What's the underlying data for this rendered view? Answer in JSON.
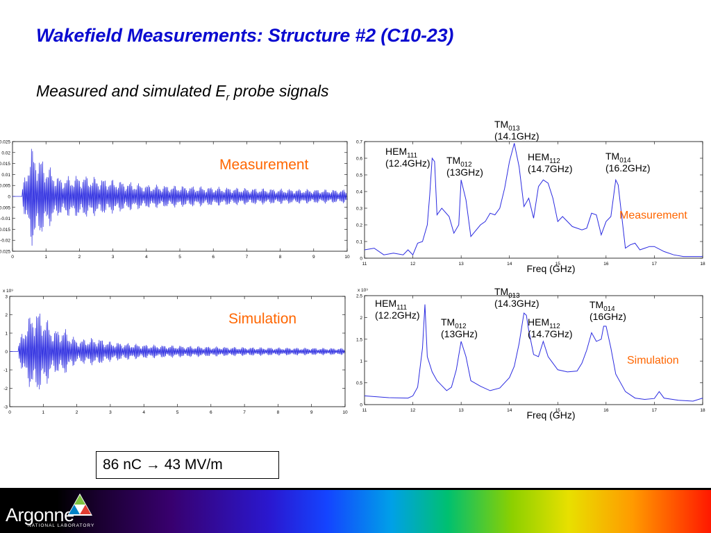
{
  "title": "Wakefield Measurements: Structure #2 (C10-23)",
  "subtitle": {
    "text": "Measured and simulated E",
    "sub": "r",
    "suffix": " probe signals"
  },
  "summary_box": "86 nC → 43 MV/m",
  "logo": {
    "name": "Argonne",
    "sub": "NATIONAL LABORATORY"
  },
  "colors": {
    "title": "#0a0ad0",
    "trace": "#2a2ae0",
    "label": "#ff6600"
  },
  "chart_data": [
    {
      "type": "line",
      "label": "Measurement",
      "x_ticks": [
        0,
        1,
        2,
        3,
        4,
        5,
        6,
        7,
        8,
        9,
        10
      ],
      "y_ticks": [
        -0.025,
        -0.02,
        -0.015,
        -0.01,
        -0.005,
        0,
        0.005,
        0.01,
        0.015,
        0.02,
        0.025
      ],
      "y_tick_labels": [
        "-0.025",
        "-0.02",
        "-0.015",
        "-0.01",
        "-0.005",
        "0",
        "0.005",
        "0.01",
        "0.015",
        "0.02",
        "0.025"
      ],
      "xlim": [
        0,
        10
      ],
      "ylim": [
        -0.025,
        0.025
      ],
      "y_exponent": "",
      "envelope": {
        "x": [
          0.3,
          0.55,
          0.75,
          1.0,
          1.4,
          2.1,
          2.5,
          3.0,
          4.0,
          5.0,
          6.0,
          7.0,
          8.0,
          9.0,
          10.0
        ],
        "amp": [
          0.004,
          0.021,
          0.018,
          0.014,
          0.008,
          0.009,
          0.008,
          0.007,
          0.005,
          0.0045,
          0.004,
          0.0035,
          0.0032,
          0.003,
          0.0028
        ]
      }
    },
    {
      "type": "line",
      "label": "Simulation",
      "x_ticks": [
        0,
        1,
        2,
        3,
        4,
        5,
        6,
        7,
        8,
        9,
        10
      ],
      "y_ticks": [
        -3,
        -2,
        -1,
        0,
        1,
        2,
        3
      ],
      "y_tick_labels": [
        "-3",
        "-2",
        "-1",
        "0",
        "1",
        "2",
        "3"
      ],
      "xlim": [
        0,
        10
      ],
      "ylim": [
        -3,
        3
      ],
      "y_exponent": "x 10⁹",
      "envelope": {
        "x": [
          0.25,
          0.45,
          0.75,
          1.0,
          1.3,
          1.6,
          2.0,
          2.6,
          3.0,
          4.0,
          5.0,
          6.0,
          7.0,
          8.0,
          10.0
        ],
        "amp": [
          0.3,
          1.4,
          2.2,
          1.9,
          1.1,
          1.2,
          0.6,
          0.7,
          0.5,
          0.35,
          0.3,
          0.25,
          0.22,
          0.2,
          0.17
        ]
      }
    },
    {
      "type": "line",
      "label": "Measurement",
      "xlabel": "Freq (GHz)",
      "x_ticks": [
        11,
        12,
        13,
        14,
        15,
        16,
        17,
        18
      ],
      "y_ticks": [
        0,
        0.1,
        0.2,
        0.3,
        0.4,
        0.5,
        0.6,
        0.7
      ],
      "y_tick_labels": [
        "0",
        "0.1",
        "0.2",
        "0.3",
        "0.4",
        "0.5",
        "0.6",
        "0.7"
      ],
      "xlim": [
        11,
        18
      ],
      "ylim": [
        0,
        0.7
      ],
      "y_exponent": "",
      "x": [
        11.0,
        11.2,
        11.4,
        11.6,
        11.8,
        11.9,
        12.0,
        12.1,
        12.2,
        12.3,
        12.35,
        12.4,
        12.45,
        12.5,
        12.6,
        12.75,
        12.85,
        12.95,
        13.0,
        13.1,
        13.2,
        13.4,
        13.5,
        13.6,
        13.7,
        13.8,
        13.9,
        14.0,
        14.1,
        14.2,
        14.3,
        14.4,
        14.5,
        14.6,
        14.7,
        14.8,
        14.9,
        15.0,
        15.1,
        15.3,
        15.5,
        15.6,
        15.7,
        15.8,
        15.9,
        16.0,
        16.1,
        16.2,
        16.25,
        16.4,
        16.5,
        16.6,
        16.7,
        16.8,
        16.9,
        17.0,
        17.2,
        17.4,
        17.6,
        18.0
      ],
      "y": [
        0.05,
        0.06,
        0.02,
        0.03,
        0.02,
        0.05,
        0.02,
        0.09,
        0.1,
        0.2,
        0.38,
        0.6,
        0.58,
        0.26,
        0.3,
        0.25,
        0.15,
        0.2,
        0.47,
        0.35,
        0.13,
        0.2,
        0.22,
        0.27,
        0.26,
        0.3,
        0.42,
        0.58,
        0.69,
        0.55,
        0.31,
        0.36,
        0.24,
        0.43,
        0.47,
        0.45,
        0.36,
        0.22,
        0.25,
        0.19,
        0.17,
        0.18,
        0.27,
        0.26,
        0.14,
        0.22,
        0.25,
        0.47,
        0.44,
        0.06,
        0.08,
        0.09,
        0.05,
        0.06,
        0.07,
        0.07,
        0.04,
        0.02,
        0.01,
        0.01
      ],
      "annotations": [
        {
          "name": "HEM",
          "sub": "111",
          "freq": "(12.4GHz)"
        },
        {
          "name": "TM",
          "sub": "012",
          "freq": "(13GHz)"
        },
        {
          "name": "TM",
          "sub": "013",
          "freq": "(14.1GHz)"
        },
        {
          "name": "HEM",
          "sub": "112",
          "freq": "(14.7GHz)"
        },
        {
          "name": "TM",
          "sub": "014",
          "freq": "(16.2GHz)"
        }
      ]
    },
    {
      "type": "line",
      "label": "Simulation",
      "xlabel": "Freq (GHz)",
      "x_ticks": [
        11,
        12,
        13,
        14,
        15,
        16,
        17,
        18
      ],
      "y_ticks": [
        0,
        0.5,
        1,
        1.5,
        2,
        2.5
      ],
      "y_tick_labels": [
        "0",
        "0.5",
        "1",
        "1.5",
        "2",
        "2.5"
      ],
      "xlim": [
        11,
        18
      ],
      "ylim": [
        0,
        2.5
      ],
      "y_exponent": "x 10⁹",
      "x": [
        11.0,
        11.5,
        11.9,
        12.0,
        12.1,
        12.2,
        12.25,
        12.3,
        12.4,
        12.5,
        12.7,
        12.8,
        12.9,
        13.0,
        13.1,
        13.2,
        13.4,
        13.6,
        13.8,
        14.0,
        14.1,
        14.2,
        14.3,
        14.35,
        14.4,
        14.5,
        14.6,
        14.7,
        14.8,
        14.9,
        15.0,
        15.2,
        15.4,
        15.5,
        15.6,
        15.7,
        15.8,
        15.9,
        15.95,
        16.0,
        16.1,
        16.2,
        16.4,
        16.6,
        16.8,
        17.0,
        17.1,
        17.2,
        17.5,
        17.8,
        18.0
      ],
      "y": [
        0.2,
        0.16,
        0.15,
        0.2,
        0.4,
        1.3,
        2.3,
        1.1,
        0.75,
        0.55,
        0.32,
        0.4,
        0.8,
        1.45,
        1.1,
        0.55,
        0.42,
        0.32,
        0.38,
        0.62,
        0.88,
        1.4,
        2.1,
        2.05,
        1.7,
        1.15,
        1.1,
        1.45,
        1.1,
        0.95,
        0.8,
        0.75,
        0.77,
        0.95,
        1.25,
        1.65,
        1.45,
        1.5,
        1.8,
        1.8,
        1.3,
        0.7,
        0.3,
        0.15,
        0.12,
        0.14,
        0.3,
        0.15,
        0.1,
        0.08,
        0.15
      ],
      "annotations": [
        {
          "name": "HEM",
          "sub": "111",
          "freq": "(12.2GHz)"
        },
        {
          "name": "TM",
          "sub": "012",
          "freq": "(13GHz)"
        },
        {
          "name": "TM",
          "sub": "013",
          "freq": "(14.3GHz)"
        },
        {
          "name": "HEM",
          "sub": "112",
          "freq": "(14.7GHz)"
        },
        {
          "name": "TM",
          "sub": "014",
          "freq": "(16GHz)"
        }
      ]
    }
  ]
}
